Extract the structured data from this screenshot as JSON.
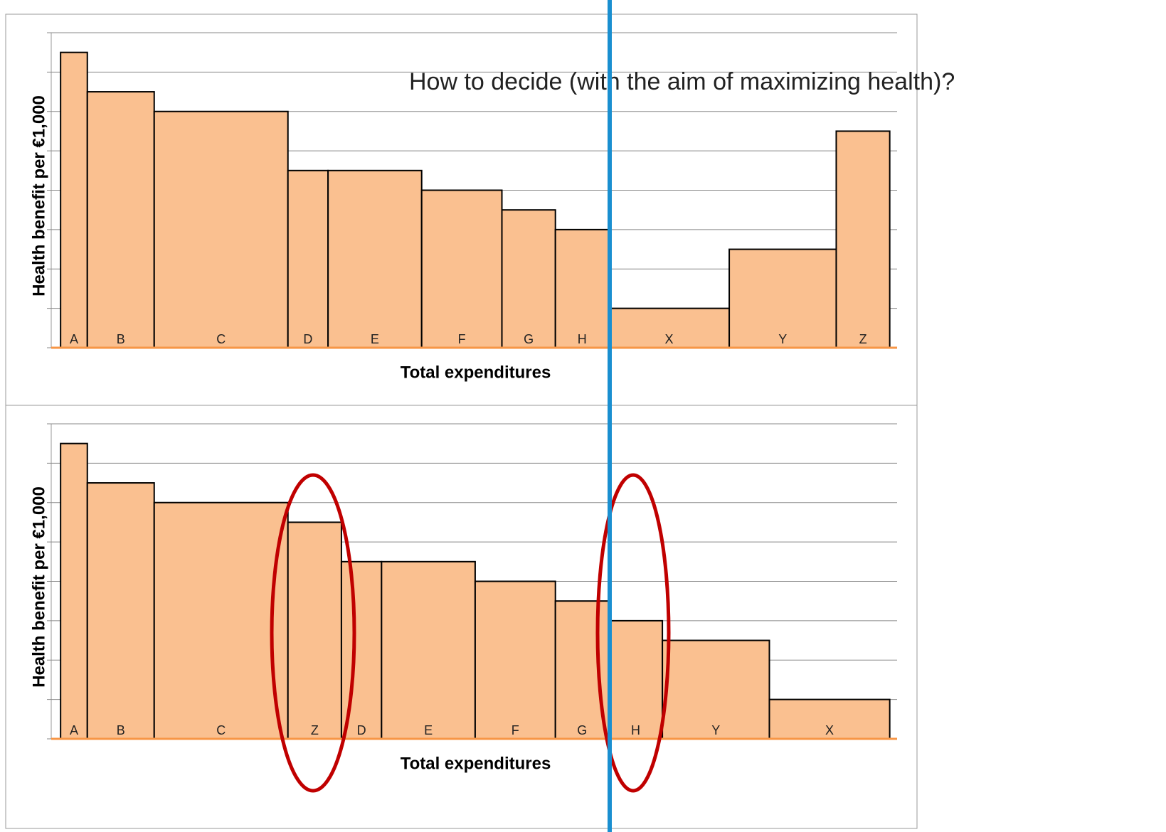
{
  "heading": "How to decide (with the aim of maximizing health)?",
  "chart_data": [
    {
      "type": "bar",
      "ylabel": "Health benefit per €1,000",
      "xlabel": "Total expenditures",
      "categories": [
        "A",
        "B",
        "C",
        "D",
        "E",
        "F",
        "G",
        "H",
        "X",
        "Y",
        "Z"
      ],
      "widths": [
        2,
        5,
        10,
        3,
        7,
        6,
        4,
        4,
        9,
        8,
        4
      ],
      "values": [
        7.5,
        6.5,
        6,
        4.5,
        4.5,
        4,
        3.5,
        3,
        1,
        2.5,
        5.5
      ],
      "color": "#fac090",
      "xlim": [
        -0.7,
        62.55
      ],
      "ylim": [
        0,
        8
      ],
      "yticks": [
        0,
        1,
        2,
        3,
        4,
        5,
        6,
        7,
        8
      ],
      "grid": true
    },
    {
      "type": "bar",
      "ylabel": "Health benefit per €1,000",
      "xlabel": "Total expenditures",
      "categories": [
        "A",
        "B",
        "C",
        "Z",
        "D",
        "E",
        "F",
        "G",
        "H",
        "Y",
        "X"
      ],
      "widths": [
        2,
        5,
        10,
        4,
        3,
        7,
        6,
        4,
        4,
        8,
        9
      ],
      "values": [
        7.5,
        6.5,
        6,
        5.5,
        4.5,
        4.5,
        4,
        3.5,
        3,
        2.5,
        1
      ],
      "color": "#fac090",
      "xlim": [
        -0.7,
        62.55
      ],
      "ylim": [
        0,
        8
      ],
      "yticks": [
        0,
        1,
        2,
        3,
        4,
        5,
        6,
        7,
        8
      ],
      "grid": true
    }
  ]
}
